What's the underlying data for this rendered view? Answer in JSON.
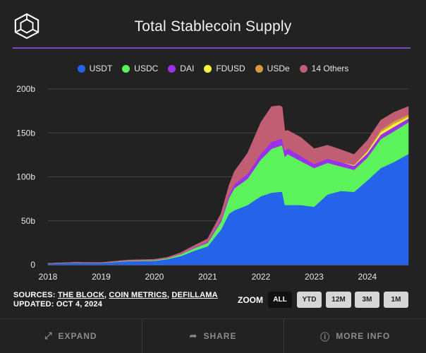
{
  "header": {
    "title": "Total Stablecoin Supply"
  },
  "colors": {
    "USDT": "#2563eb",
    "USDC": "#5cf25c",
    "DAI": "#9b30e8",
    "FDUSD": "#f5f53c",
    "USDe": "#d69a3a",
    "Others": "#c25e74",
    "accent": "#7d45c9"
  },
  "chart_data": {
    "type": "area",
    "stacked": true,
    "title": "Total Stablecoin Supply",
    "xlabel": "",
    "ylabel": "",
    "xlim": [
      2018.0,
      2024.77
    ],
    "ylim": [
      0,
      200
    ],
    "y_unit": "billions USD",
    "x_ticks": [
      2018,
      2019,
      2020,
      2021,
      2022,
      2023,
      2024
    ],
    "y_ticks": [
      0,
      50,
      100,
      150,
      200
    ],
    "y_tick_labels": [
      "0",
      "50b",
      "100b",
      "150b",
      "200b"
    ],
    "legend": [
      "USDT",
      "USDC",
      "DAI",
      "FDUSD",
      "USDe",
      "14 Others"
    ],
    "x": [
      2018.0,
      2018.5,
      2019.0,
      2019.5,
      2020.0,
      2020.25,
      2020.5,
      2020.75,
      2021.0,
      2021.25,
      2021.4,
      2021.5,
      2021.75,
      2022.0,
      2022.2,
      2022.35,
      2022.4,
      2022.45,
      2022.5,
      2022.75,
      2023.0,
      2023.25,
      2023.5,
      2023.75,
      2024.0,
      2024.25,
      2024.5,
      2024.77
    ],
    "series": [
      {
        "name": "USDT",
        "values": [
          1.5,
          2.5,
          2.0,
          4.0,
          4.5,
          6.5,
          10,
          16,
          21,
          40,
          58,
          62,
          68,
          78,
          82,
          83,
          83,
          68,
          68,
          68,
          66,
          80,
          84,
          83,
          96,
          110,
          117,
          126
        ]
      },
      {
        "name": "USDC",
        "values": [
          0,
          0.1,
          0.2,
          0.6,
          0.7,
          0.9,
          2.0,
          3.0,
          4.0,
          9,
          18,
          25,
          30,
          42,
          50,
          52,
          53,
          55,
          58,
          50,
          44,
          36,
          28,
          25,
          26,
          33,
          35,
          36
        ]
      },
      {
        "name": "DAI",
        "values": [
          0,
          0,
          0.1,
          0.1,
          0.1,
          0.2,
          0.4,
          1.0,
          1.5,
          3.0,
          4.0,
          5.0,
          6.0,
          7.0,
          8.0,
          8.0,
          7.5,
          7.0,
          7.0,
          6.0,
          5.0,
          5.0,
          5.0,
          4.5,
          5.0,
          5.0,
          5.0,
          4.5
        ]
      },
      {
        "name": "FDUSD",
        "values": [
          0,
          0,
          0,
          0,
          0,
          0,
          0,
          0,
          0,
          0,
          0,
          0,
          0,
          0,
          0,
          0,
          0,
          0,
          0,
          0,
          0,
          0,
          0,
          1.0,
          2.0,
          3.0,
          3.5,
          2.0
        ]
      },
      {
        "name": "USDe",
        "values": [
          0,
          0,
          0,
          0,
          0,
          0,
          0,
          0,
          0,
          0,
          0,
          0,
          0,
          0,
          0,
          0,
          0,
          0,
          0,
          0,
          0,
          0,
          0,
          0,
          0.5,
          2.5,
          3.0,
          2.5
        ]
      },
      {
        "name": "14 Others",
        "values": [
          0.1,
          0.3,
          0.3,
          0.8,
          0.9,
          1.0,
          1.5,
          2.0,
          3.0,
          6.0,
          10,
          14,
          23,
          35,
          40,
          38,
          36,
          22,
          20,
          21,
          17,
          15,
          14,
          12,
          12,
          11,
          10,
          9
        ]
      }
    ]
  },
  "footer_info": {
    "sources_label": "SOURCES:",
    "sources": [
      "THE BLOCK",
      "COIN METRICS",
      "DEFILLAMA"
    ],
    "updated": "UPDATED: OCT 4, 2024"
  },
  "zoom": {
    "label": "ZOOM",
    "buttons": [
      "ALL",
      "YTD",
      "12M",
      "3M",
      "1M"
    ],
    "active": "ALL"
  },
  "actions": {
    "expand": "EXPAND",
    "share": "SHARE",
    "more_info": "MORE INFO"
  }
}
